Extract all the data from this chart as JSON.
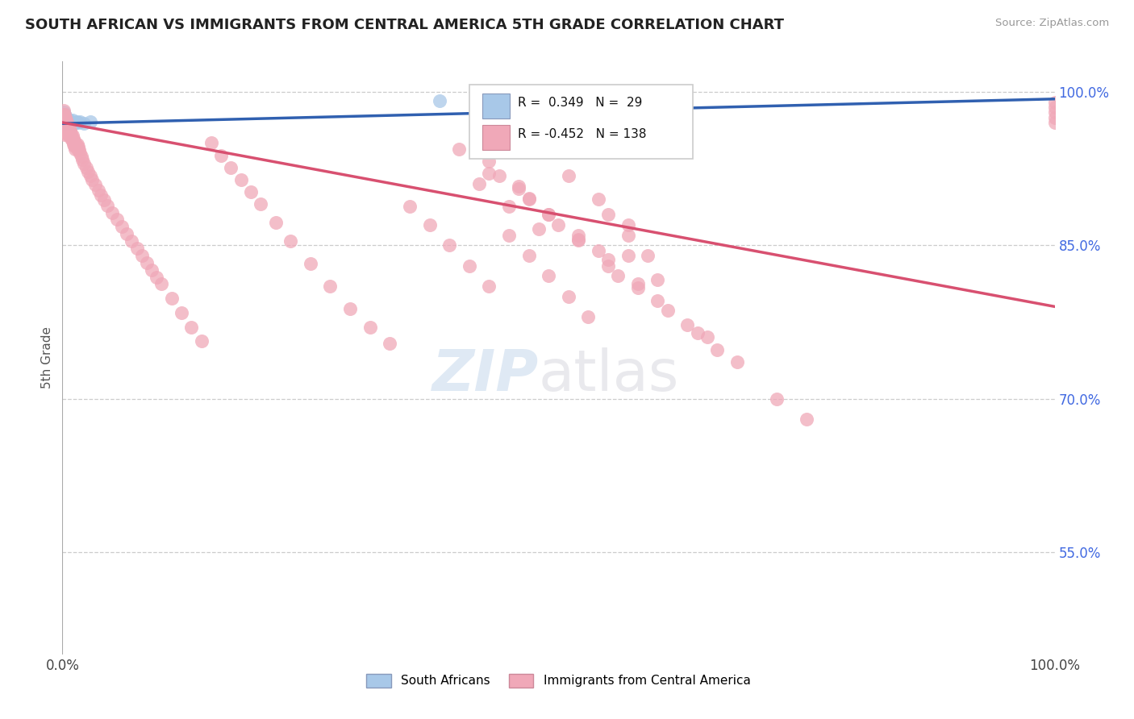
{
  "title": "SOUTH AFRICAN VS IMMIGRANTS FROM CENTRAL AMERICA 5TH GRADE CORRELATION CHART",
  "source": "Source: ZipAtlas.com",
  "ylabel": "5th Grade",
  "xlim": [
    0.0,
    1.0
  ],
  "ylim": [
    0.45,
    1.03
  ],
  "yticks": [
    0.55,
    0.7,
    0.85,
    1.0
  ],
  "ytick_labels": [
    "55.0%",
    "70.0%",
    "85.0%",
    "100.0%"
  ],
  "xticks": [
    0.0,
    1.0
  ],
  "xtick_labels": [
    "0.0%",
    "100.0%"
  ],
  "blue_R": 0.349,
  "blue_N": 29,
  "pink_R": -0.452,
  "pink_N": 138,
  "legend_label_blue": "South Africans",
  "legend_label_pink": "Immigrants from Central America",
  "blue_color": "#a8c8e8",
  "pink_color": "#f0a8b8",
  "blue_line_color": "#3060b0",
  "pink_line_color": "#d85070",
  "blue_line_x0": 0.0,
  "blue_line_y0": 0.969,
  "blue_line_x1": 1.0,
  "blue_line_y1": 0.993,
  "pink_line_x0": 0.0,
  "pink_line_y0": 0.97,
  "pink_line_x1": 1.0,
  "pink_line_y1": 0.79,
  "blue_scatter_x": [
    0.001,
    0.001,
    0.001,
    0.001,
    0.001,
    0.002,
    0.002,
    0.002,
    0.002,
    0.003,
    0.003,
    0.003,
    0.004,
    0.004,
    0.005,
    0.005,
    0.006,
    0.006,
    0.007,
    0.008,
    0.009,
    0.01,
    0.012,
    0.014,
    0.016,
    0.018,
    0.022,
    0.028,
    0.38
  ],
  "blue_scatter_y": [
    0.98,
    0.977,
    0.974,
    0.971,
    0.968,
    0.978,
    0.975,
    0.972,
    0.969,
    0.976,
    0.973,
    0.97,
    0.974,
    0.971,
    0.972,
    0.969,
    0.971,
    0.968,
    0.972,
    0.97,
    0.971,
    0.972,
    0.969,
    0.971,
    0.97,
    0.971,
    0.969,
    0.971,
    0.991
  ],
  "pink_scatter_x": [
    0.001,
    0.001,
    0.001,
    0.001,
    0.001,
    0.002,
    0.002,
    0.002,
    0.002,
    0.002,
    0.003,
    0.003,
    0.003,
    0.003,
    0.004,
    0.004,
    0.004,
    0.005,
    0.005,
    0.005,
    0.006,
    0.006,
    0.006,
    0.007,
    0.007,
    0.008,
    0.008,
    0.009,
    0.009,
    0.01,
    0.01,
    0.011,
    0.011,
    0.012,
    0.012,
    0.013,
    0.013,
    0.014,
    0.015,
    0.015,
    0.016,
    0.017,
    0.018,
    0.019,
    0.02,
    0.022,
    0.024,
    0.026,
    0.028,
    0.03,
    0.033,
    0.036,
    0.039,
    0.042,
    0.045,
    0.05,
    0.055,
    0.06,
    0.065,
    0.07,
    0.075,
    0.08,
    0.085,
    0.09,
    0.095,
    0.1,
    0.11,
    0.12,
    0.13,
    0.14,
    0.15,
    0.16,
    0.17,
    0.18,
    0.19,
    0.2,
    0.215,
    0.23,
    0.25,
    0.27,
    0.29,
    0.31,
    0.33,
    0.35,
    0.37,
    0.39,
    0.41,
    0.43,
    0.45,
    0.47,
    0.49,
    0.51,
    0.53,
    0.55,
    0.57,
    0.59,
    0.42,
    0.45,
    0.48,
    0.51,
    0.54,
    0.57,
    0.46,
    0.49,
    0.52,
    0.43,
    0.47,
    0.43,
    0.46,
    0.4,
    0.55,
    0.58,
    0.61,
    0.64,
    0.52,
    0.55,
    0.58,
    0.56,
    0.6,
    0.63,
    0.66,
    0.57,
    0.6,
    0.5,
    0.54,
    0.49,
    0.52,
    0.47,
    0.44,
    0.65,
    0.68,
    0.72,
    0.75,
    1.0,
    1.0,
    1.0,
    1.0,
    1.0
  ],
  "pink_scatter_y": [
    0.982,
    0.978,
    0.972,
    0.968,
    0.962,
    0.978,
    0.972,
    0.968,
    0.963,
    0.958,
    0.975,
    0.97,
    0.965,
    0.96,
    0.972,
    0.967,
    0.962,
    0.97,
    0.965,
    0.96,
    0.967,
    0.962,
    0.957,
    0.964,
    0.959,
    0.962,
    0.957,
    0.959,
    0.954,
    0.957,
    0.952,
    0.954,
    0.949,
    0.952,
    0.947,
    0.95,
    0.944,
    0.947,
    0.949,
    0.944,
    0.946,
    0.943,
    0.94,
    0.937,
    0.934,
    0.93,
    0.926,
    0.922,
    0.918,
    0.914,
    0.909,
    0.904,
    0.899,
    0.894,
    0.889,
    0.882,
    0.875,
    0.868,
    0.861,
    0.854,
    0.847,
    0.84,
    0.833,
    0.826,
    0.819,
    0.812,
    0.798,
    0.784,
    0.77,
    0.756,
    0.95,
    0.938,
    0.926,
    0.914,
    0.902,
    0.89,
    0.872,
    0.854,
    0.832,
    0.81,
    0.788,
    0.77,
    0.754,
    0.888,
    0.87,
    0.85,
    0.83,
    0.81,
    0.86,
    0.84,
    0.82,
    0.8,
    0.78,
    0.88,
    0.86,
    0.84,
    0.91,
    0.888,
    0.866,
    0.918,
    0.895,
    0.87,
    0.905,
    0.88,
    0.856,
    0.92,
    0.896,
    0.932,
    0.908,
    0.944,
    0.83,
    0.808,
    0.786,
    0.764,
    0.86,
    0.836,
    0.812,
    0.82,
    0.796,
    0.772,
    0.748,
    0.84,
    0.816,
    0.87,
    0.845,
    0.88,
    0.855,
    0.895,
    0.918,
    0.76,
    0.736,
    0.7,
    0.68,
    0.99,
    0.985,
    0.98,
    0.975,
    0.97
  ]
}
